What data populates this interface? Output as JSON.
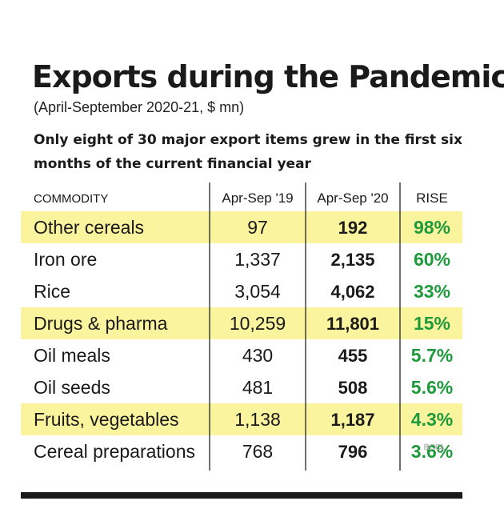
{
  "title": "Exports during the Pandemic",
  "subtitle": "(April-September 2020-21, $ mn)",
  "description": "Only eight of 30 major export items grew in the first six months of the current financial year",
  "colors": {
    "highlight": "#fbf49e",
    "rise": "#1e9a3c",
    "text": "#1a1a1a",
    "divider": "#333333"
  },
  "chart_data": {
    "type": "table",
    "columns": [
      "COMMODITY",
      "Apr-Sep '19",
      "Apr-Sep '20",
      "RISE"
    ],
    "rows": [
      {
        "commodity": "Other cereals",
        "y2019": "97",
        "y2020": "192",
        "rise": "98%",
        "highlight": true
      },
      {
        "commodity": "Iron ore",
        "y2019": "1,337",
        "y2020": "2,135",
        "rise": "60%",
        "highlight": false
      },
      {
        "commodity": "Rice",
        "y2019": "3,054",
        "y2020": "4,062",
        "rise": "33%",
        "highlight": false
      },
      {
        "commodity": "Drugs & pharma",
        "y2019": "10,259",
        "y2020": "11,801",
        "rise": "15%",
        "highlight": true
      },
      {
        "commodity": "Oil meals",
        "y2019": "430",
        "y2020": "455",
        "rise": "5.7%",
        "highlight": false
      },
      {
        "commodity": "Oil seeds",
        "y2019": "481",
        "y2020": "508",
        "rise": "5.6%",
        "highlight": false
      },
      {
        "commodity": "Fruits, vegetables",
        "y2019": "1,138",
        "y2020": "1,187",
        "rise": "4.3%",
        "highlight": true
      },
      {
        "commodity": "Cereal preparations",
        "y2019": "768",
        "y2020": "796",
        "rise": "3.6%",
        "highlight": false
      }
    ]
  },
  "watermark": "BCCL"
}
